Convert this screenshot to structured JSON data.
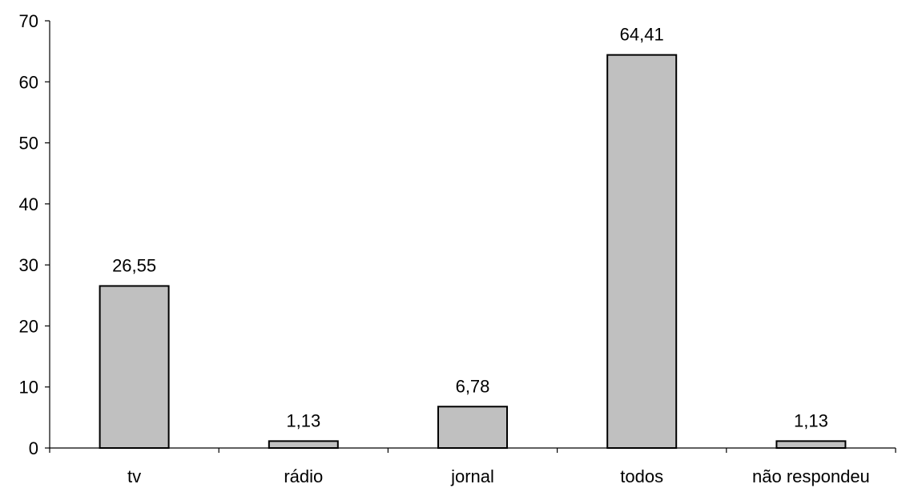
{
  "chart_data": {
    "type": "bar",
    "categories": [
      "tv",
      "rádio",
      "jornal",
      "todos",
      "não respondeu"
    ],
    "values": [
      26.55,
      1.13,
      6.78,
      64.41,
      1.13
    ],
    "value_labels": [
      "26,55",
      "1,13",
      "6,78",
      "64,41",
      "1,13"
    ],
    "yticks": [
      "0",
      "10",
      "20",
      "30",
      "40",
      "50",
      "60",
      "70"
    ],
    "ylim": [
      0,
      70
    ],
    "grid": false,
    "legend": false,
    "bar_color": "#c0c0c0",
    "bar_edge_color": "#000000"
  }
}
